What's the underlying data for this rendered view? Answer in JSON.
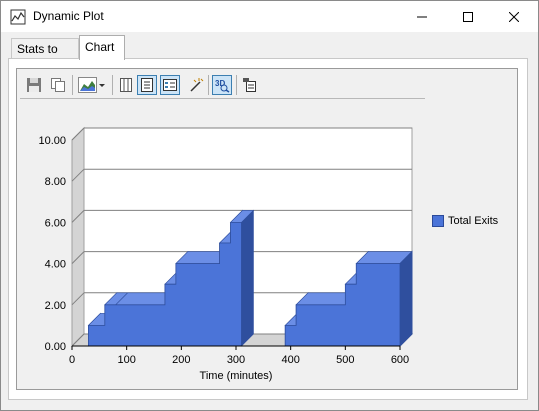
{
  "window": {
    "title": "Dynamic Plot",
    "controls": [
      "minimize",
      "maximize",
      "close"
    ]
  },
  "tabs": [
    {
      "label": "Stats to Plot",
      "active": false
    },
    {
      "label": "Chart",
      "active": true
    }
  ],
  "toolbar": {
    "icons": [
      "save-icon",
      "copy-icon",
      "chart-type-icon",
      "data-grid-icon",
      "legend-icon",
      "data-editor-icon",
      "wizard-icon",
      "3d-view-icon",
      "properties-icon"
    ],
    "pressed": [
      "legend-icon",
      "data-editor-icon",
      "3d-view-icon"
    ]
  },
  "colors": {
    "series_fill": "#4b74d8",
    "series_dark": "#2f4f9e",
    "series_top": "#6b8ee6",
    "plot_bg": "#ffffff",
    "wall": "#d4d4d4",
    "grid": "#808080"
  },
  "chart_data": {
    "type": "area",
    "style": "3d-step",
    "xlabel": "Time (minutes)",
    "ylabel": "",
    "xlim": [
      0,
      600
    ],
    "ylim": [
      0,
      10
    ],
    "x_ticks": [
      "0",
      "100",
      "200",
      "300",
      "400",
      "500",
      "600"
    ],
    "y_ticks": [
      "0.00",
      "2.00",
      "4.00",
      "6.00",
      "8.00",
      "10.00"
    ],
    "grid": true,
    "legend": "right",
    "series": [
      {
        "name": "Total Exits",
        "x": [
          0,
          30,
          30,
          60,
          60,
          80,
          80,
          170,
          170,
          190,
          190,
          270,
          270,
          290,
          290,
          310,
          310,
          390,
          390,
          410,
          410,
          500,
          500,
          520,
          520,
          600
        ],
        "y": [
          0,
          0,
          1,
          1,
          2,
          2,
          2,
          2,
          3,
          3,
          4,
          4,
          5,
          5,
          6,
          6,
          0,
          0,
          1,
          1,
          2,
          2,
          3,
          3,
          4,
          4
        ]
      }
    ]
  }
}
